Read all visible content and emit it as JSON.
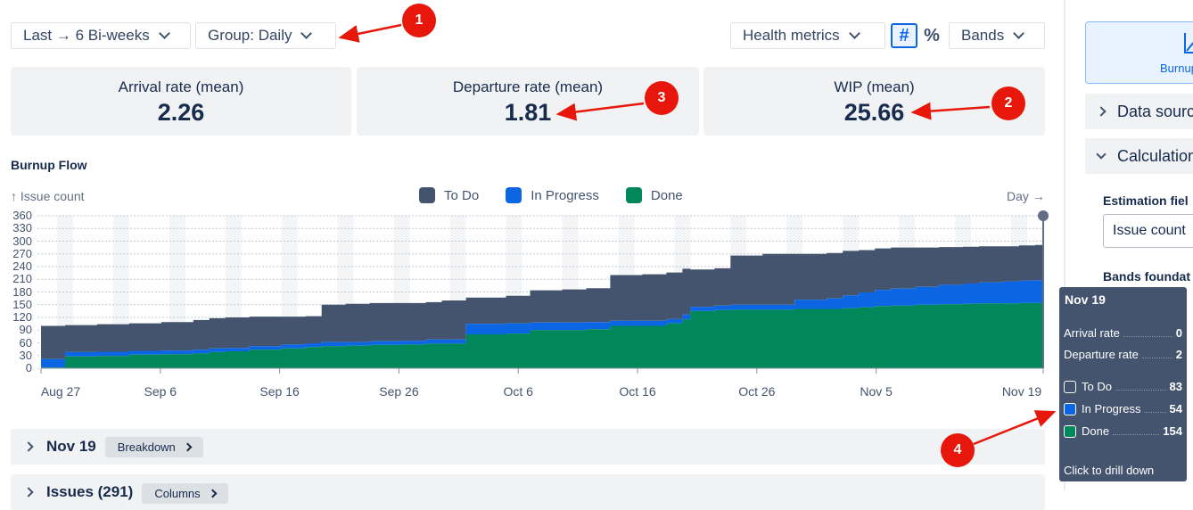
{
  "toolbar": {
    "range_label": "Last → 6 Bi-weeks",
    "group_label": "Group: Daily",
    "health_label": "Health metrics",
    "hash_icon": "#",
    "percent_icon": "%",
    "bands_label": "Bands"
  },
  "metrics": [
    {
      "label": "Arrival rate (mean)",
      "value": "2.26"
    },
    {
      "label": "Departure rate (mean)",
      "value": "1.81"
    },
    {
      "label": "WIP (mean)",
      "value": "25.66"
    }
  ],
  "chart_title": "Burnup Flow",
  "chart_data": {
    "type": "area",
    "title": "Burnup Flow",
    "ylabel": "↑ Issue count",
    "xlabel": "Day →",
    "ylim": [
      0,
      360
    ],
    "yticks": [
      "360",
      "330",
      "300",
      "270",
      "240",
      "210",
      "180",
      "150",
      "120",
      "90",
      "60",
      "30",
      "0"
    ],
    "xticks": [
      "Aug 27",
      "Sep 6",
      "Sep 16",
      "Sep 26",
      "Oct 6",
      "Oct 16",
      "Oct 26",
      "Nov 5",
      "Nov 19"
    ],
    "stacked": true,
    "x_days": [
      0,
      3,
      7,
      11,
      15,
      19,
      21,
      23,
      26,
      30,
      33,
      35,
      38,
      41,
      45,
      48,
      50,
      53,
      56,
      58,
      61,
      65,
      68,
      69,
      71,
      75,
      78,
      80,
      81,
      83,
      84,
      86,
      90,
      94,
      98,
      100,
      102,
      104,
      106,
      109,
      112,
      115,
      117,
      120,
      122,
      124,
      125
    ],
    "series": [
      {
        "name": "Done",
        "color": "#00875a",
        "values": [
          2,
          28,
          29,
          32,
          33,
          35,
          38,
          40,
          44,
          47,
          50,
          52,
          53,
          55,
          56,
          58,
          58,
          80,
          80,
          82,
          90,
          90,
          92,
          92,
          100,
          100,
          106,
          115,
          135,
          135,
          137,
          138,
          138,
          140,
          140,
          142,
          144,
          147,
          148,
          150,
          151,
          152,
          153,
          153,
          154,
          154,
          154
        ]
      },
      {
        "name": "In Progress",
        "color": "#0c66e4",
        "values": [
          20,
          10,
          10,
          9,
          9,
          9,
          9,
          8,
          8,
          9,
          9,
          10,
          9,
          9,
          9,
          10,
          10,
          25,
          25,
          24,
          18,
          18,
          17,
          17,
          12,
          12,
          10,
          12,
          10,
          10,
          11,
          12,
          12,
          22,
          25,
          30,
          35,
          38,
          40,
          42,
          46,
          48,
          50,
          52,
          53,
          54,
          54
        ]
      },
      {
        "name": "To Do",
        "color": "#44546f",
        "values": [
          78,
          64,
          65,
          65,
          67,
          70,
          71,
          72,
          70,
          66,
          64,
          88,
          90,
          90,
          89,
          88,
          92,
          62,
          62,
          65,
          76,
          78,
          80,
          80,
          108,
          110,
          110,
          108,
          88,
          88,
          88,
          116,
          120,
          108,
          107,
          105,
          100,
          98,
          97,
          93,
          89,
          87,
          85,
          83,
          83,
          83,
          83
        ]
      }
    ],
    "grid": true,
    "legend_position": "top-center"
  },
  "drilldown_rows": [
    {
      "title": "Nov 19",
      "pill": "Breakdown"
    },
    {
      "title": "Issues (291)",
      "pill": "Columns"
    }
  ],
  "sidebar": {
    "burnup_button": "Burnup",
    "data_sources": "Data sourc",
    "calculations": "Calculation",
    "estimation_label": "Estimation fiel",
    "estimation_value": "Issue count",
    "bands_label": "Bands foundat"
  },
  "tooltip": {
    "date": "Nov 19",
    "arrival_label": "Arrival rate",
    "arrival_value": "0",
    "departure_label": "Departure rate",
    "departure_value": "2",
    "todo_label": "To Do",
    "todo_value": "83",
    "inprogress_label": "In Progress",
    "inprogress_value": "54",
    "done_label": "Done",
    "done_value": "154",
    "footer": "Click to drill down"
  },
  "annotations": [
    "1",
    "2",
    "3",
    "4"
  ],
  "colors": {
    "todo": "#44546f",
    "inprogress": "#0c66e4",
    "done": "#00875a",
    "annotation": "#e8170b",
    "accent": "#0c66e4"
  }
}
